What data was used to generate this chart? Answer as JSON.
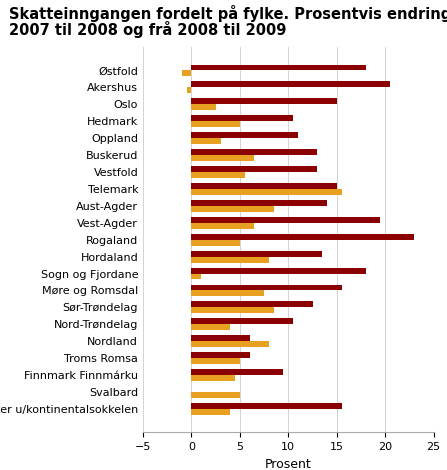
{
  "title_line1": "Skatteinngangen fordelt på fylke. Prosentvis endring januar-juni frå",
  "title_line2": "2007 til 2008 og frå 2008 til 2009",
  "categories": [
    "Østfold",
    "Akershus",
    "Oslo",
    "Hedmark",
    "Oppland",
    "Buskerud",
    "Vestfold",
    "Telemark",
    "Aust-Agder",
    "Vest-Agder",
    "Rogaland",
    "Hordaland",
    "Sogn og Fjordane",
    "Møre og Romsdal",
    "Sør-Trøndelag",
    "Nord-Trøndelag",
    "Nordland",
    "Troms Romsa",
    "Finnmark Finnmárku",
    "Svalbard",
    "Sum fylker u/kontinentalsokkelen"
  ],
  "values_2007_2008": [
    18,
    20.5,
    15,
    10.5,
    11,
    13,
    13,
    15,
    14,
    19.5,
    23,
    13.5,
    18,
    15.5,
    12.5,
    10.5,
    6,
    6,
    9.5,
    0,
    15.5
  ],
  "values_2008_2009": [
    -1,
    -0.5,
    2.5,
    5,
    3,
    6.5,
    5.5,
    15.5,
    8.5,
    6.5,
    5,
    8,
    1,
    7.5,
    8.5,
    4,
    8,
    5,
    4.5,
    5,
    4
  ],
  "color_2007_2008": "#8B0000",
  "color_2008_2009": "#E8A020",
  "xlabel": "Prosent",
  "xlim": [
    -5,
    25
  ],
  "xticks": [
    -5,
    0,
    5,
    10,
    15,
    20,
    25
  ],
  "background_color": "#ffffff",
  "grid_color": "#cccccc",
  "title_fontsize": 10.5,
  "axis_fontsize": 9,
  "tick_fontsize": 8,
  "legend_fontsize": 9,
  "bar_height": 0.35
}
